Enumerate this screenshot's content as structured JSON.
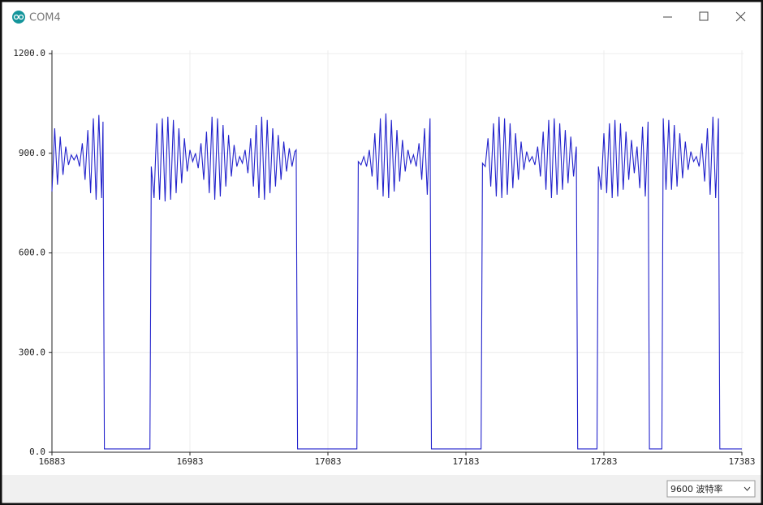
{
  "window": {
    "title": "COM4"
  },
  "chart_data": {
    "type": "line",
    "color": "#2222cc",
    "grid": true,
    "xlim": [
      16883,
      17383
    ],
    "ylim": [
      0,
      1200
    ],
    "xticks": [
      16883,
      16983,
      17083,
      17183,
      17283,
      17383
    ],
    "yticks": [
      {
        "value": 0,
        "label": "0.0"
      },
      {
        "value": 300,
        "label": "300.0"
      },
      {
        "value": 600,
        "label": "600.0"
      },
      {
        "value": 900,
        "label": "900.0"
      },
      {
        "value": 1200,
        "label": "1200.0"
      }
    ],
    "x": [
      16883,
      16885,
      16887,
      16889,
      16891,
      16893,
      16895,
      16897,
      16899,
      16901,
      16903,
      16905,
      16907,
      16909,
      16911,
      16913,
      16915,
      16917,
      16919,
      16920,
      16921,
      16954,
      16955,
      16957,
      16959,
      16961,
      16963,
      16965,
      16967,
      16969,
      16971,
      16973,
      16975,
      16977,
      16979,
      16981,
      16983,
      16985,
      16987,
      16989,
      16991,
      16993,
      16995,
      16997,
      16999,
      17001,
      17003,
      17005,
      17007,
      17009,
      17011,
      17013,
      17015,
      17017,
      17019,
      17021,
      17023,
      17025,
      17027,
      17029,
      17031,
      17033,
      17035,
      17037,
      17039,
      17041,
      17043,
      17045,
      17047,
      17049,
      17051,
      17053,
      17055,
      17057,
      17059,
      17060,
      17061,
      17104,
      17105,
      17107,
      17109,
      17111,
      17113,
      17115,
      17117,
      17119,
      17121,
      17123,
      17125,
      17127,
      17129,
      17131,
      17133,
      17135,
      17137,
      17139,
      17141,
      17143,
      17145,
      17147,
      17149,
      17151,
      17153,
      17155,
      17157,
      17158,
      17194,
      17195,
      17197,
      17199,
      17201,
      17203,
      17205,
      17207,
      17209,
      17211,
      17213,
      17215,
      17217,
      17219,
      17221,
      17223,
      17225,
      17227,
      17229,
      17231,
      17233,
      17235,
      17237,
      17239,
      17241,
      17243,
      17245,
      17247,
      17249,
      17251,
      17253,
      17255,
      17257,
      17259,
      17261,
      17263,
      17264,
      17278,
      17279,
      17281,
      17283,
      17285,
      17287,
      17289,
      17291,
      17293,
      17295,
      17297,
      17299,
      17301,
      17303,
      17305,
      17307,
      17309,
      17311,
      17313,
      17315,
      17316,
      17325,
      17326,
      17328,
      17330,
      17332,
      17334,
      17336,
      17338,
      17340,
      17342,
      17344,
      17346,
      17348,
      17350,
      17352,
      17354,
      17356,
      17358,
      17360,
      17362,
      17364,
      17366,
      17367,
      17383
    ],
    "values": [
      785,
      975,
      805,
      950,
      835,
      920,
      865,
      895,
      880,
      895,
      860,
      930,
      820,
      970,
      780,
      1005,
      760,
      1015,
      765,
      995,
      10,
      10,
      860,
      765,
      990,
      760,
      1005,
      755,
      1010,
      760,
      1000,
      780,
      975,
      810,
      945,
      845,
      910,
      875,
      900,
      855,
      930,
      820,
      965,
      780,
      1010,
      760,
      1005,
      770,
      985,
      800,
      955,
      830,
      925,
      860,
      890,
      870,
      910,
      840,
      945,
      800,
      985,
      765,
      1010,
      760,
      1000,
      780,
      975,
      800,
      955,
      820,
      935,
      845,
      915,
      860,
      905,
      910,
      10,
      10,
      875,
      865,
      890,
      860,
      910,
      830,
      960,
      790,
      1005,
      770,
      1020,
      765,
      1000,
      785,
      970,
      815,
      940,
      845,
      910,
      870,
      895,
      860,
      930,
      820,
      975,
      775,
      1005,
      10,
      10,
      870,
      860,
      945,
      800,
      990,
      770,
      1010,
      765,
      1005,
      775,
      990,
      795,
      960,
      820,
      935,
      850,
      905,
      875,
      890,
      865,
      920,
      830,
      965,
      790,
      1000,
      765,
      1005,
      775,
      990,
      790,
      970,
      810,
      950,
      830,
      920,
      10,
      10,
      860,
      790,
      960,
      780,
      990,
      765,
      1000,
      770,
      990,
      790,
      965,
      820,
      940,
      840,
      920,
      795,
      980,
      770,
      995,
      10,
      10,
      1005,
      790,
      1000,
      790,
      985,
      800,
      960,
      825,
      935,
      850,
      905,
      875,
      890,
      860,
      930,
      815,
      975,
      775,
      1010,
      765,
      1005,
      10,
      10
    ]
  },
  "footer": {
    "baud_rate": "9600 波特率"
  }
}
